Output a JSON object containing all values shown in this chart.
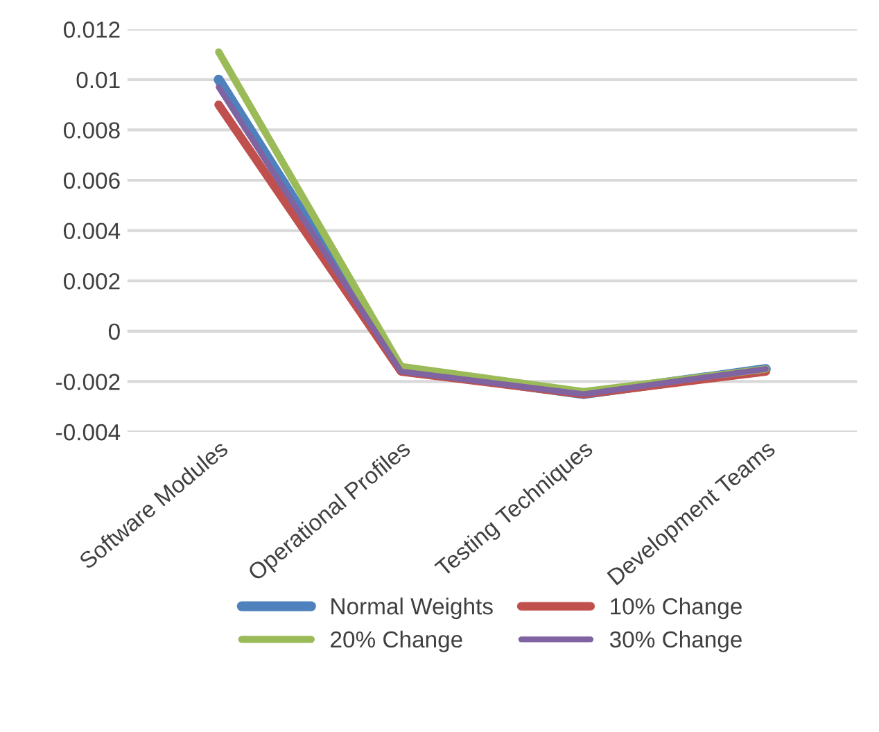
{
  "chart_data": {
    "type": "line",
    "categories": [
      "Software Modules",
      "Operational Profiles",
      "Testing Techniques",
      "Development Teams"
    ],
    "series": [
      {
        "name": "Normal Weights",
        "color": "#4f81bd",
        "values": [
          0.01,
          -0.0015,
          -0.0025,
          -0.0015
        ]
      },
      {
        "name": "10% Change",
        "color": "#c0504d",
        "values": [
          0.009,
          -0.0016,
          -0.0025,
          -0.0016
        ]
      },
      {
        "name": "20% Change",
        "color": "#9bbb59",
        "values": [
          0.0111,
          -0.0014,
          -0.0024,
          -0.0015
        ]
      },
      {
        "name": "30% Change",
        "color": "#8064a2",
        "values": [
          0.0097,
          -0.0016,
          -0.0025,
          -0.0015
        ]
      }
    ],
    "ylim": [
      -0.004,
      0.012
    ],
    "yticks": [
      -0.004,
      -0.002,
      0,
      0.002,
      0.004,
      0.006,
      0.008,
      0.01,
      0.012
    ],
    "grid": "y",
    "legend": "bottom",
    "marker": "none",
    "line_style": "solid"
  }
}
